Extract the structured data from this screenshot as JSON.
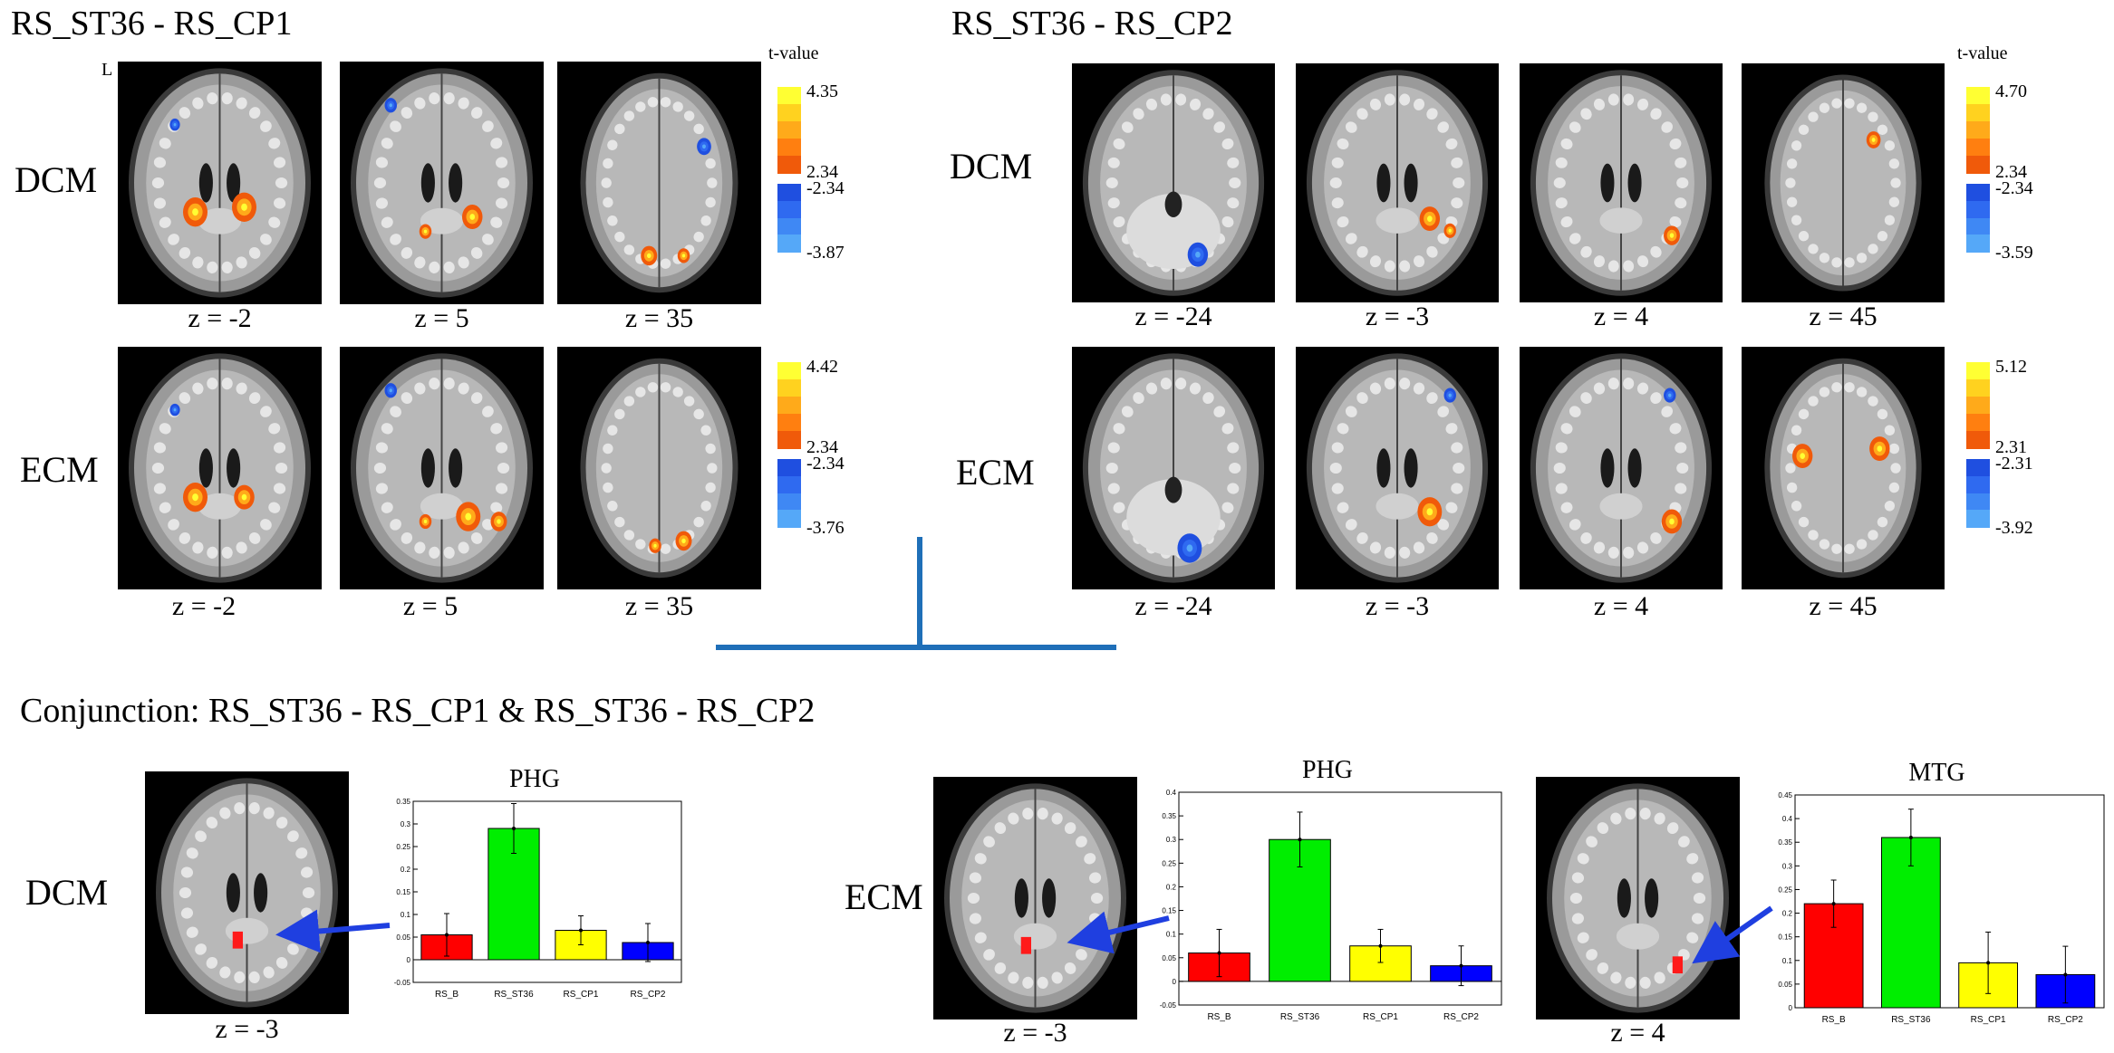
{
  "panels": {
    "cp1": {
      "title": "RS_ST36 - RS_CP1",
      "l_marker": "L",
      "rows": [
        {
          "label": "DCM",
          "slices": [
            "z = -2",
            "z = 5",
            "z = 35"
          ],
          "cbar": {
            "title": "t-value",
            "max": "4.35",
            "pos_min": "2.34",
            "neg_min": "-2.34",
            "neg_max": "-3.87"
          }
        },
        {
          "label": "ECM",
          "slices": [
            "z = -2",
            "z = 5",
            "z = 35"
          ],
          "cbar": {
            "title": "",
            "max": "4.42",
            "pos_min": "2.34",
            "neg_min": "-2.34",
            "neg_max": "-3.76"
          }
        }
      ]
    },
    "cp2": {
      "title": "RS_ST36 - RS_CP2",
      "rows": [
        {
          "label": "DCM",
          "slices": [
            "z = -24",
            "z = -3",
            "z = 4",
            "z = 45"
          ],
          "cbar": {
            "title": "t-value",
            "max": "4.70",
            "pos_min": "2.34",
            "neg_min": "-2.34",
            "neg_max": "-3.59"
          }
        },
        {
          "label": "ECM",
          "slices": [
            "z = -24",
            "z = -3",
            "z = 4",
            "z = 45"
          ],
          "cbar": {
            "title": "",
            "max": "5.12",
            "pos_min": "2.31",
            "neg_min": "-2.31",
            "neg_max": "-3.92"
          }
        }
      ]
    }
  },
  "conjunction": {
    "title": "Conjunction: RS_ST36 - RS_CP1 & RS_ST36 - RS_CP2",
    "dcm_label": "DCM",
    "ecm_label": "ECM",
    "slice_labels": [
      "z = -3",
      "z = -3",
      "z = 4"
    ]
  },
  "colors": {
    "pos_scale": [
      "#ffff33",
      "#ffd21f",
      "#ffaa1a",
      "#ff7f10",
      "#f05a0a"
    ],
    "neg_scale": [
      "#1f4fe0",
      "#2f6af0",
      "#3f88f4",
      "#55a8f8"
    ],
    "connector": "#1f6fb8",
    "arrow": "#1f3fe0",
    "roi": "#ff1a1a",
    "bar_colors": [
      "#ff0000",
      "#00ee00",
      "#ffff00",
      "#0000ff"
    ]
  },
  "chart_data": [
    {
      "type": "bar",
      "title": "PHG",
      "categories": [
        "RS_B",
        "RS_ST36",
        "RS_CP1",
        "RS_CP2"
      ],
      "values": [
        0.055,
        0.29,
        0.065,
        0.038
      ],
      "errors": [
        0.047,
        0.055,
        0.032,
        0.042
      ],
      "ylim": [
        -0.05,
        0.35
      ],
      "yticks": [
        "-0.05",
        "0",
        "0.05",
        "0.1",
        "0.15",
        "0.2",
        "0.25",
        "0.3",
        "0.35"
      ],
      "xlabel": "",
      "ylabel": ""
    },
    {
      "type": "bar",
      "title": "PHG",
      "categories": [
        "RS_B",
        "RS_ST36",
        "RS_CP1",
        "RS_CP2"
      ],
      "values": [
        0.06,
        0.3,
        0.075,
        0.033
      ],
      "errors": [
        0.05,
        0.058,
        0.035,
        0.042
      ],
      "ylim": [
        -0.05,
        0.4
      ],
      "yticks": [
        "-0.05",
        "0",
        "0.05",
        "0.1",
        "0.15",
        "0.2",
        "0.25",
        "0.3",
        "0.35",
        "0.4"
      ],
      "xlabel": "",
      "ylabel": ""
    },
    {
      "type": "bar",
      "title": "MTG",
      "categories": [
        "RS_B",
        "RS_ST36",
        "RS_CP1",
        "RS_CP2"
      ],
      "values": [
        0.22,
        0.36,
        0.095,
        0.07
      ],
      "errors": [
        0.05,
        0.06,
        0.065,
        0.06
      ],
      "ylim": [
        0,
        0.45
      ],
      "yticks": [
        "0",
        "0.05",
        "0.1",
        "0.15",
        "0.2",
        "0.25",
        "0.3",
        "0.35",
        "0.4",
        "0.45"
      ],
      "xlabel": "",
      "ylabel": ""
    }
  ]
}
